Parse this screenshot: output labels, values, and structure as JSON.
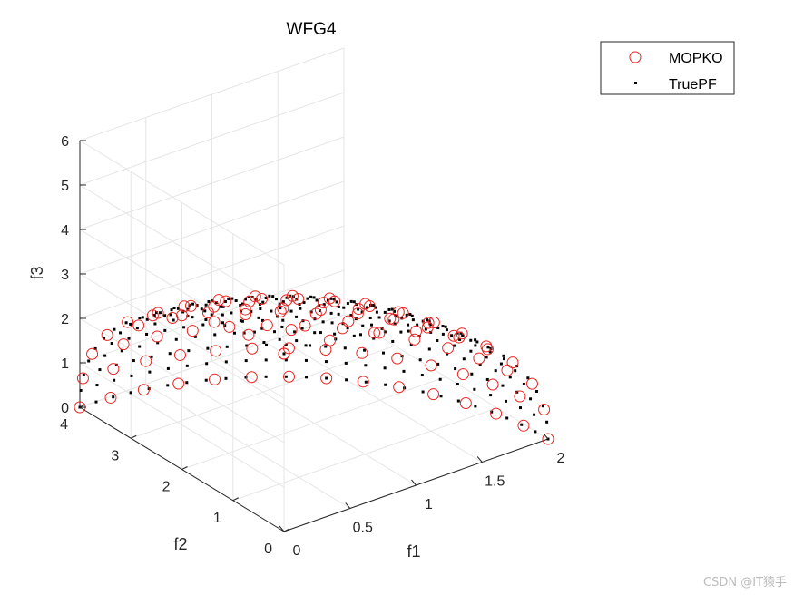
{
  "chart_data": {
    "type": "scatter3d",
    "title": "WFG4",
    "xlabel": "f1",
    "ylabel": "f2",
    "zlabel": "f3",
    "xlim": [
      0,
      2
    ],
    "ylim": [
      0,
      4
    ],
    "zlim": [
      0,
      6
    ],
    "xticks": [
      0,
      0.5,
      1,
      1.5,
      2
    ],
    "yticks": [
      0,
      1,
      2,
      3,
      4
    ],
    "zticks": [
      0,
      1,
      2,
      3,
      4,
      5,
      6
    ],
    "grid": true,
    "legend_position": "top-right",
    "surface": "ellipsoid octant (f1/2)^2 + (f2/4)^2 + (f3/4)^2 = 1",
    "series": [
      {
        "name": "MOPKO",
        "marker": "circle",
        "color": "#e8231f",
        "n_theta": 9,
        "n_phi": 14
      },
      {
        "name": "TruePF",
        "marker": "dot",
        "color": "#000000",
        "n_theta": 16,
        "n_phi": 26
      }
    ]
  },
  "watermark": "CSDN @IT猿手"
}
